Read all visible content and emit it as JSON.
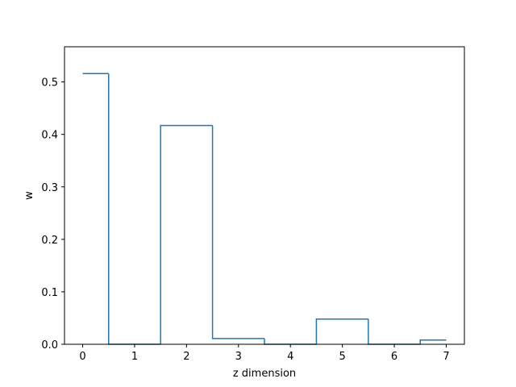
{
  "chart_data": {
    "type": "line",
    "drawstyle": "steps-mid",
    "title": "",
    "xlabel": "z dimension",
    "ylabel": "w",
    "xlim": [
      -0.35,
      7.35
    ],
    "ylim": [
      0,
      0.567
    ],
    "xticks": [
      0,
      1,
      2,
      3,
      4,
      5,
      6,
      7
    ],
    "yticks": [
      0.0,
      0.1,
      0.2,
      0.3,
      0.4,
      0.5
    ],
    "ytick_labels": [
      "0.0",
      "0.1",
      "0.2",
      "0.3",
      "0.4",
      "0.5"
    ],
    "grid": false,
    "legend": "none",
    "color": "#1f77b4",
    "x": [
      0,
      1,
      2,
      3,
      4,
      5,
      6,
      7
    ],
    "y": [
      0.516,
      0.0,
      0.417,
      0.011,
      0.0,
      0.048,
      0.0,
      0.008
    ]
  }
}
